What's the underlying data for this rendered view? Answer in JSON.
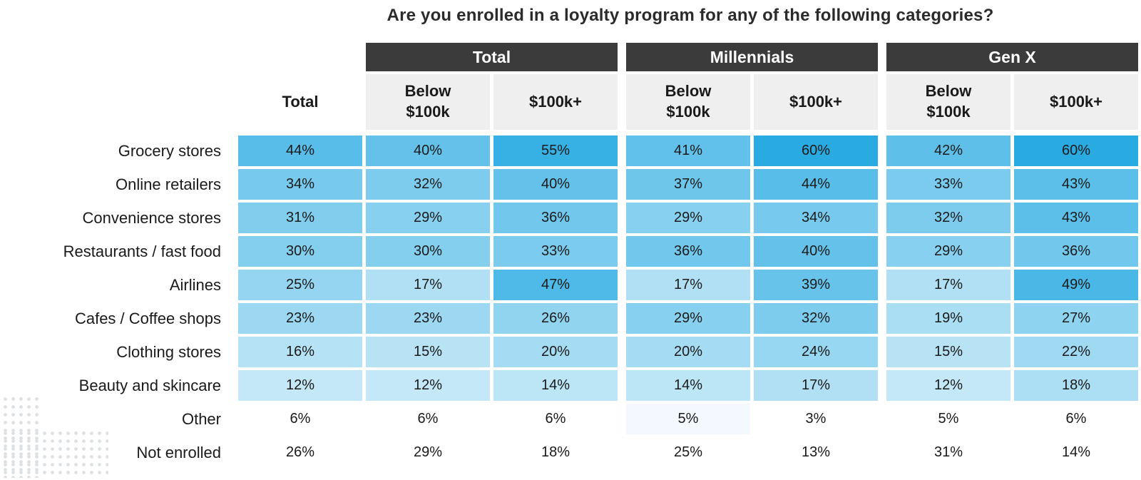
{
  "title": "Are you enrolled in a loyalty program for any of the following categories?",
  "colors": {
    "page_bg": "#ffffff",
    "header_bg": "#3b3b3b",
    "header_text": "#ffffff",
    "subheader_bg": "#efefef",
    "body_text": "#1a1a1a",
    "title_text": "#2b2b2b",
    "dot_color": "#dde1e4"
  },
  "chart_data": {
    "type": "heatmap",
    "title": "Are you enrolled in a loyalty program for any of the following categories?",
    "value_suffix": "%",
    "legend_position": "none",
    "column_groups": [
      {
        "label": "Total",
        "span": 2
      },
      {
        "label": "Millennials",
        "span": 2
      },
      {
        "label": "Gen X",
        "span": 2
      }
    ],
    "columns": [
      "Total",
      "Below $100k",
      "$100k+",
      "Below $100k",
      "$100k+",
      "Below $100k",
      "$100k+"
    ],
    "rows": [
      {
        "label": "Grocery stores",
        "values": [
          44,
          40,
          55,
          41,
          60,
          42,
          60
        ],
        "heat": true
      },
      {
        "label": "Online retailers",
        "values": [
          34,
          32,
          40,
          37,
          44,
          33,
          43
        ],
        "heat": true
      },
      {
        "label": "Convenience stores",
        "values": [
          31,
          29,
          36,
          29,
          34,
          32,
          43
        ],
        "heat": true
      },
      {
        "label": "Restaurants / fast food",
        "values": [
          30,
          30,
          33,
          36,
          40,
          29,
          36
        ],
        "heat": true
      },
      {
        "label": "Airlines",
        "values": [
          25,
          17,
          47,
          17,
          39,
          17,
          49
        ],
        "heat": true
      },
      {
        "label": "Cafes / Coffee shops",
        "values": [
          23,
          23,
          26,
          29,
          32,
          19,
          27
        ],
        "heat": true
      },
      {
        "label": "Clothing stores",
        "values": [
          16,
          15,
          20,
          20,
          24,
          15,
          22
        ],
        "heat": true
      },
      {
        "label": "Beauty and skincare",
        "values": [
          12,
          12,
          14,
          14,
          17,
          12,
          18
        ],
        "heat": true
      },
      {
        "label": "Other",
        "values": [
          6,
          6,
          6,
          5,
          3,
          5,
          6
        ],
        "heat": false,
        "faint": [
          3
        ]
      },
      {
        "label": "Not enrolled",
        "values": [
          26,
          29,
          18,
          25,
          13,
          31,
          14
        ],
        "heat": false
      }
    ],
    "scale": {
      "min": 0,
      "max": 60,
      "gamma": 0.8,
      "low_color": "#ffffff",
      "high_color": "#29abe2",
      "faint_color": "#f3f9fe"
    }
  }
}
